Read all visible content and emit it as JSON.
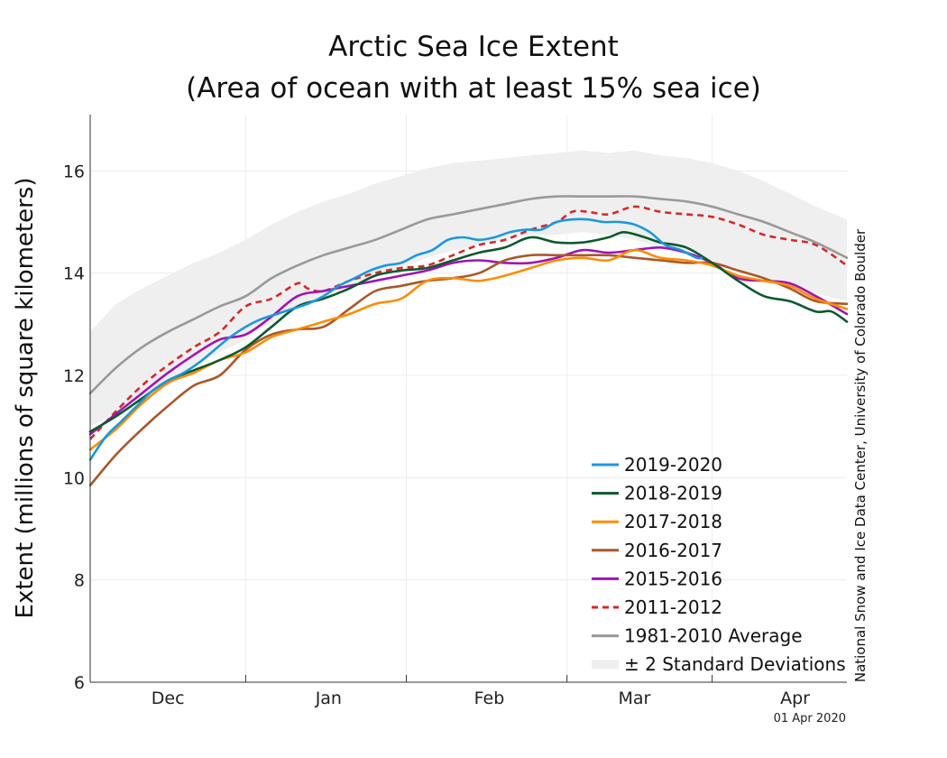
{
  "chart_data": {
    "type": "line",
    "title": [
      "Arctic Sea Ice Extent",
      "(Area of ocean with at least 15% sea ice)"
    ],
    "ylabel": "Extent (millions of square kilometers)",
    "xlabel": "",
    "ylim": [
      6,
      17.1
    ],
    "yticks": [
      6,
      8,
      10,
      12,
      14,
      16
    ],
    "xlim": [
      0,
      146
    ],
    "months": [
      {
        "label": "Dec",
        "x": 15
      },
      {
        "label": "Jan",
        "x": 46
      },
      {
        "label": "Feb",
        "x": 77
      },
      {
        "label": "Mar",
        "x": 105
      },
      {
        "label": "Apr",
        "x": 136
      }
    ],
    "month_boundaries": [
      30,
      61,
      92,
      120
    ],
    "grid": true,
    "legend_position": "bottom-right",
    "credit": "National Snow and Ice Data Center, University of Colorado Boulder",
    "date": "01 Apr 2020",
    "band": {
      "name": "± 2 Standard Deviations",
      "color": "#efefef",
      "x": [
        0,
        5,
        10,
        15,
        20,
        25,
        30,
        35,
        40,
        45,
        50,
        55,
        60,
        65,
        70,
        75,
        80,
        85,
        90,
        95,
        100,
        105,
        110,
        115,
        120,
        125,
        130,
        135,
        140,
        146
      ],
      "upper": [
        12.85,
        13.4,
        13.7,
        13.95,
        14.2,
        14.4,
        14.65,
        14.95,
        15.2,
        15.4,
        15.55,
        15.75,
        15.9,
        16.05,
        16.15,
        16.2,
        16.25,
        16.3,
        16.35,
        16.4,
        16.35,
        16.4,
        16.3,
        16.25,
        16.15,
        16.0,
        15.8,
        15.55,
        15.3,
        15.05
      ],
      "lower": [
        11.0,
        11.25,
        11.6,
        11.9,
        12.2,
        12.45,
        12.7,
        13.05,
        13.3,
        13.55,
        13.75,
        13.95,
        14.1,
        14.3,
        14.45,
        14.55,
        14.65,
        14.75,
        14.75,
        14.8,
        14.75,
        14.65,
        14.5,
        14.35,
        14.2,
        14.05,
        13.9,
        13.75,
        13.6,
        13.45
      ]
    },
    "series": [
      {
        "name": "2019-2020",
        "color": "#1b98e0",
        "dash": false,
        "x": [
          0,
          3,
          6,
          9,
          12,
          15,
          18,
          21,
          24,
          27,
          30,
          33,
          36,
          39,
          42,
          45,
          48,
          51,
          54,
          57,
          60,
          63,
          66,
          69,
          72,
          75,
          78,
          81,
          84,
          87,
          90,
          93,
          96,
          99,
          102,
          105,
          108,
          111,
          114,
          117,
          118
        ],
        "y": [
          10.35,
          10.8,
          11.1,
          11.4,
          11.7,
          11.9,
          12.05,
          12.25,
          12.5,
          12.75,
          12.95,
          13.1,
          13.2,
          13.3,
          13.4,
          13.55,
          13.75,
          13.9,
          14.05,
          14.15,
          14.2,
          14.35,
          14.45,
          14.65,
          14.7,
          14.65,
          14.7,
          14.8,
          14.85,
          14.85,
          15.0,
          15.05,
          15.05,
          15.0,
          15.0,
          14.95,
          14.8,
          14.55,
          14.45,
          14.3,
          14.3
        ]
      },
      {
        "name": "2018-2019",
        "color": "#0a5a2c",
        "dash": false,
        "x": [
          0,
          5,
          10,
          15,
          20,
          25,
          30,
          35,
          40,
          45,
          50,
          55,
          60,
          65,
          70,
          75,
          80,
          85,
          90,
          95,
          100,
          103,
          107,
          110,
          115,
          120,
          125,
          130,
          135,
          140,
          143,
          146
        ],
        "y": [
          10.9,
          11.2,
          11.55,
          11.9,
          12.1,
          12.3,
          12.55,
          12.95,
          13.35,
          13.5,
          13.7,
          13.95,
          14.05,
          14.1,
          14.25,
          14.4,
          14.5,
          14.7,
          14.6,
          14.6,
          14.7,
          14.8,
          14.7,
          14.6,
          14.5,
          14.2,
          13.85,
          13.55,
          13.45,
          13.25,
          13.25,
          13.05
        ]
      },
      {
        "name": "2017-2018",
        "color": "#ff8c00",
        "dash": false,
        "x": [
          0,
          5,
          10,
          15,
          20,
          25,
          30,
          35,
          40,
          45,
          50,
          55,
          60,
          65,
          70,
          75,
          80,
          85,
          90,
          95,
          100,
          105,
          110,
          115,
          120,
          125,
          130,
          135,
          140,
          146
        ],
        "y": [
          10.55,
          10.95,
          11.45,
          11.85,
          12.05,
          12.3,
          12.45,
          12.75,
          12.9,
          13.05,
          13.2,
          13.4,
          13.5,
          13.85,
          13.9,
          13.85,
          13.95,
          14.1,
          14.25,
          14.3,
          14.25,
          14.45,
          14.3,
          14.25,
          14.15,
          13.95,
          13.85,
          13.75,
          13.5,
          13.3
        ]
      },
      {
        "name": "2016-2017",
        "color": "#a9582b",
        "dash": false,
        "x": [
          0,
          5,
          10,
          15,
          20,
          25,
          30,
          35,
          40,
          45,
          50,
          55,
          60,
          65,
          70,
          75,
          80,
          85,
          90,
          95,
          100,
          105,
          110,
          115,
          120,
          125,
          130,
          135,
          140,
          146
        ],
        "y": [
          9.85,
          10.45,
          10.95,
          11.4,
          11.8,
          12.0,
          12.5,
          12.8,
          12.9,
          12.95,
          13.3,
          13.65,
          13.75,
          13.85,
          13.9,
          14.0,
          14.25,
          14.35,
          14.35,
          14.35,
          14.35,
          14.3,
          14.25,
          14.2,
          14.2,
          14.05,
          13.9,
          13.7,
          13.45,
          13.4
        ]
      },
      {
        "name": "2015-2016",
        "color": "#a014b4",
        "dash": false,
        "x": [
          0,
          5,
          10,
          15,
          20,
          25,
          30,
          35,
          40,
          45,
          50,
          55,
          60,
          65,
          70,
          75,
          80,
          85,
          90,
          95,
          100,
          105,
          110,
          115,
          120,
          125,
          130,
          135,
          140,
          146
        ],
        "y": [
          10.85,
          11.25,
          11.65,
          12.05,
          12.4,
          12.7,
          12.8,
          13.15,
          13.55,
          13.65,
          13.75,
          13.85,
          13.95,
          14.05,
          14.2,
          14.25,
          14.2,
          14.2,
          14.3,
          14.45,
          14.4,
          14.45,
          14.5,
          14.4,
          14.2,
          13.9,
          13.85,
          13.8,
          13.55,
          13.2
        ]
      },
      {
        "name": "2011-2012",
        "color": "#d7282a",
        "dash": true,
        "x": [
          0,
          5,
          10,
          15,
          20,
          25,
          30,
          35,
          40,
          42,
          45,
          50,
          55,
          60,
          65,
          70,
          75,
          80,
          85,
          90,
          93,
          96,
          100,
          105,
          110,
          115,
          120,
          125,
          130,
          135,
          140,
          146
        ],
        "y": [
          10.75,
          11.3,
          11.8,
          12.2,
          12.55,
          12.85,
          13.35,
          13.5,
          13.8,
          13.7,
          13.65,
          13.85,
          14.0,
          14.1,
          14.15,
          14.35,
          14.55,
          14.65,
          14.85,
          15.0,
          15.2,
          15.2,
          15.15,
          15.3,
          15.2,
          15.15,
          15.1,
          14.95,
          14.75,
          14.65,
          14.55,
          14.15
        ]
      },
      {
        "name": "1981-2010 Average",
        "color": "#999999",
        "dash": false,
        "x": [
          0,
          5,
          10,
          15,
          20,
          25,
          30,
          35,
          40,
          45,
          50,
          55,
          60,
          65,
          70,
          75,
          80,
          85,
          90,
          95,
          100,
          105,
          110,
          115,
          120,
          125,
          130,
          135,
          140,
          146
        ],
        "y": [
          11.65,
          12.15,
          12.55,
          12.85,
          13.1,
          13.35,
          13.55,
          13.9,
          14.15,
          14.35,
          14.5,
          14.65,
          14.85,
          15.05,
          15.15,
          15.25,
          15.35,
          15.45,
          15.5,
          15.5,
          15.5,
          15.5,
          15.45,
          15.4,
          15.3,
          15.15,
          15.0,
          14.8,
          14.6,
          14.3
        ]
      }
    ]
  }
}
